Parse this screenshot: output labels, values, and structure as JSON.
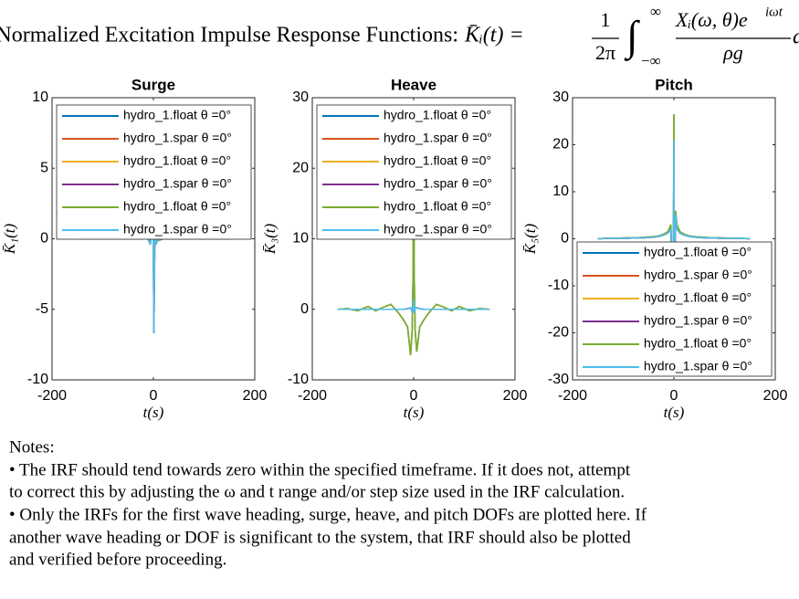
{
  "header": {
    "title": "Normalized Excitation Impulse Response Functions:",
    "lhs": "K̄ᵢ(t) =",
    "frac1_num": "1",
    "frac1_den": "2π",
    "integral": "∫",
    "upper": "∞",
    "lower": "−∞",
    "frac2_num": "Xᵢ(ω, θ)e",
    "frac2_sup": "iωt",
    "frac2_den": "ρg",
    "tail": "d"
  },
  "chart_data": [
    {
      "type": "line",
      "title": "Surge",
      "xlabel": "t(s)",
      "ylabel": "K̄₁(t)",
      "xlim": [
        -200,
        200
      ],
      "xticks": [
        -200,
        0,
        200
      ],
      "ylim": [
        -10,
        10
      ],
      "yticks": [
        -10,
        -5,
        0,
        5,
        10
      ],
      "grid": false,
      "legend": "northwest",
      "x": [
        -150,
        -130,
        -110,
        -90,
        -75,
        -60,
        -45,
        -30,
        -20,
        -12,
        -6,
        -3,
        -1,
        0,
        1,
        3,
        6,
        12,
        20,
        30,
        45,
        60,
        75,
        90,
        110,
        130,
        150
      ],
      "series": [
        {
          "name": "hydro_1.float θ =0°",
          "color": "#0072BD",
          "values": [
            0,
            0,
            0,
            0,
            0,
            0,
            0,
            0,
            0,
            0.1,
            -0.2,
            0.5,
            1.2,
            -1,
            0.8,
            -0.4,
            0.2,
            -0.1,
            0,
            0,
            0,
            0,
            0,
            0,
            0,
            0,
            0
          ]
        },
        {
          "name": "hydro_1.spar θ =0°",
          "color": "#D95319",
          "values": [
            0,
            0,
            0,
            0,
            0,
            0,
            0,
            0,
            0,
            0.1,
            -0.4,
            1,
            6.3,
            -1.5,
            -6.7,
            1.2,
            -0.3,
            0.1,
            0,
            0,
            0,
            0,
            0,
            0,
            0,
            0,
            0
          ]
        },
        {
          "name": "hydro_1.float θ =0°",
          "color": "#EDB120",
          "values": [
            0,
            0,
            0,
            0,
            0,
            0,
            0,
            0,
            0,
            0.1,
            -0.2,
            0.5,
            1.2,
            -1,
            0.8,
            -0.4,
            0.2,
            -0.1,
            0,
            0,
            0,
            0,
            0,
            0,
            0,
            0,
            0
          ]
        },
        {
          "name": "hydro_1.spar θ =0°",
          "color": "#7E2F8E",
          "values": [
            0,
            0,
            0,
            0,
            0,
            0,
            0,
            0,
            0,
            0.1,
            -0.4,
            1,
            6.3,
            -1.5,
            -6.7,
            1.2,
            -0.3,
            0.1,
            0,
            0,
            0,
            0,
            0,
            0,
            0,
            0,
            0
          ]
        },
        {
          "name": "hydro_1.float θ =0°",
          "color": "#77AC30",
          "values": [
            0,
            0,
            0,
            0,
            0,
            0,
            0,
            0,
            0,
            0.1,
            -0.2,
            0.5,
            1.2,
            -1,
            0.8,
            -0.4,
            0.2,
            -0.1,
            0,
            0,
            0,
            0,
            0,
            0,
            0,
            0,
            0
          ]
        },
        {
          "name": "hydro_1.spar θ =0°",
          "color": "#4DBEEE",
          "values": [
            0,
            0,
            0,
            0,
            0,
            0,
            0,
            0,
            0,
            0.1,
            -0.4,
            1,
            6.3,
            -1.5,
            -6.7,
            1.2,
            -0.3,
            0.1,
            0,
            0,
            0,
            0,
            0,
            0,
            0,
            0,
            0
          ]
        }
      ]
    },
    {
      "type": "line",
      "title": "Heave",
      "xlabel": "t(s)",
      "ylabel": "K̄₃(t)",
      "xlim": [
        -200,
        200
      ],
      "xticks": [
        -200,
        0,
        200
      ],
      "ylim": [
        -10,
        30
      ],
      "yticks": [
        -10,
        0,
        10,
        20,
        30
      ],
      "grid": false,
      "legend": "northwest",
      "x": [
        -150,
        -130,
        -110,
        -90,
        -75,
        -60,
        -45,
        -30,
        -20,
        -12,
        -6,
        -3,
        -1,
        0,
        1,
        3,
        6,
        12,
        20,
        30,
        45,
        60,
        75,
        90,
        110,
        130,
        150
      ],
      "series": [
        {
          "name": "hydro_1.float θ =0°",
          "color": "#0072BD",
          "values": [
            0,
            0.1,
            -0.2,
            0.4,
            -0.2,
            0.3,
            0.7,
            -0.5,
            -1.5,
            -2.5,
            -6.5,
            -3,
            5,
            28.5,
            5,
            -3,
            -6,
            -2.5,
            -1.5,
            -0.5,
            0.7,
            0.3,
            -0.2,
            0.4,
            -0.2,
            0.1,
            0
          ]
        },
        {
          "name": "hydro_1.spar θ =0°",
          "color": "#D95319",
          "values": [
            0,
            0,
            0,
            0,
            0,
            0,
            0,
            0,
            0,
            0.1,
            0.2,
            -0.3,
            0.5,
            1.5,
            -0.5,
            0.3,
            0.2,
            0.1,
            0,
            0,
            0,
            0,
            0,
            0,
            0,
            0,
            0
          ]
        },
        {
          "name": "hydro_1.float θ =0°",
          "color": "#EDB120",
          "values": [
            0,
            0.1,
            -0.2,
            0.4,
            -0.2,
            0.3,
            0.7,
            -0.5,
            -1.5,
            -2.5,
            -6.5,
            -3,
            5,
            28.5,
            5,
            -3,
            -6,
            -2.5,
            -1.5,
            -0.5,
            0.7,
            0.3,
            -0.2,
            0.4,
            -0.2,
            0.1,
            0
          ]
        },
        {
          "name": "hydro_1.spar θ =0°",
          "color": "#7E2F8E",
          "values": [
            0,
            0,
            0,
            0,
            0,
            0,
            0,
            0,
            0,
            0.1,
            0.2,
            -0.3,
            0.5,
            1.5,
            -0.5,
            0.3,
            0.2,
            0.1,
            0,
            0,
            0,
            0,
            0,
            0,
            0,
            0,
            0
          ]
        },
        {
          "name": "hydro_1.float θ =0°",
          "color": "#77AC30",
          "values": [
            0,
            0.1,
            -0.2,
            0.4,
            -0.2,
            0.3,
            0.7,
            -0.5,
            -1.5,
            -2.5,
            -6.5,
            -3,
            5,
            28.5,
            5,
            -3,
            -6,
            -2.5,
            -1.5,
            -0.5,
            0.7,
            0.3,
            -0.2,
            0.4,
            -0.2,
            0.1,
            0
          ]
        },
        {
          "name": "hydro_1.spar θ =0°",
          "color": "#4DBEEE",
          "values": [
            0,
            0,
            0,
            0,
            0,
            0,
            0,
            0,
            0,
            0.1,
            0.2,
            -0.3,
            0.5,
            1.5,
            -0.5,
            0.3,
            0.2,
            0.1,
            0,
            0,
            0,
            0,
            0,
            0,
            0,
            0,
            0
          ]
        }
      ]
    },
    {
      "type": "line",
      "title": "Pitch",
      "xlabel": "t(s)",
      "ylabel": "K̄₅(t)",
      "xlim": [
        -200,
        200
      ],
      "xticks": [
        -200,
        0,
        200
      ],
      "ylim": [
        -30,
        30
      ],
      "yticks": [
        -30,
        -20,
        -10,
        0,
        10,
        20,
        30
      ],
      "grid": false,
      "legend": "southeast",
      "x": [
        -150,
        -130,
        -110,
        -90,
        -75,
        -60,
        -45,
        -30,
        -20,
        -12,
        -6,
        -3,
        -1,
        0,
        1,
        3,
        6,
        12,
        20,
        30,
        45,
        60,
        75,
        90,
        110,
        130,
        150
      ],
      "series": [
        {
          "name": "hydro_1.float θ =0°",
          "color": "#0072BD",
          "values": [
            0,
            0.1,
            0.1,
            0.2,
            0.2,
            0.3,
            0.4,
            0.6,
            1,
            1.5,
            3,
            -8,
            -10,
            26.5,
            -25,
            6,
            3,
            1.5,
            1,
            0.6,
            0.4,
            0.3,
            0.2,
            0.2,
            0.1,
            0.1,
            0
          ]
        },
        {
          "name": "hydro_1.spar θ =0°",
          "color": "#D95319",
          "values": [
            0,
            0.1,
            0.1,
            0.1,
            0.2,
            0.2,
            0.3,
            0.5,
            0.8,
            1.2,
            2,
            -6,
            -8,
            21,
            -19,
            5,
            2,
            1.2,
            0.8,
            0.5,
            0.3,
            0.2,
            0.2,
            0.1,
            0.1,
            0.1,
            0
          ]
        },
        {
          "name": "hydro_1.float θ =0°",
          "color": "#EDB120",
          "values": [
            0,
            0.1,
            0.1,
            0.2,
            0.2,
            0.3,
            0.4,
            0.6,
            1,
            1.5,
            3,
            -8,
            -10,
            26.5,
            -25,
            6,
            3,
            1.5,
            1,
            0.6,
            0.4,
            0.3,
            0.2,
            0.2,
            0.1,
            0.1,
            0
          ]
        },
        {
          "name": "hydro_1.spar θ =0°",
          "color": "#7E2F8E",
          "values": [
            0,
            0.1,
            0.1,
            0.1,
            0.2,
            0.2,
            0.3,
            0.5,
            0.8,
            1.2,
            2,
            -6,
            -8,
            21,
            -19,
            5,
            2,
            1.2,
            0.8,
            0.5,
            0.3,
            0.2,
            0.2,
            0.1,
            0.1,
            0.1,
            0
          ]
        },
        {
          "name": "hydro_1.float θ =0°",
          "color": "#77AC30",
          "values": [
            0,
            0.1,
            0.1,
            0.2,
            0.2,
            0.3,
            0.4,
            0.6,
            1,
            1.5,
            3,
            -8,
            -10,
            26.5,
            -25,
            6,
            3,
            1.5,
            1,
            0.6,
            0.4,
            0.3,
            0.2,
            0.2,
            0.1,
            0.1,
            0
          ]
        },
        {
          "name": "hydro_1.spar θ =0°",
          "color": "#4DBEEE",
          "values": [
            0,
            0.1,
            0.1,
            0.1,
            0.2,
            0.2,
            0.3,
            0.5,
            0.8,
            1.2,
            2,
            -6,
            -8,
            21,
            -19,
            5,
            2,
            1.2,
            0.8,
            0.5,
            0.3,
            0.2,
            0.2,
            0.1,
            0.1,
            0.1,
            0
          ]
        }
      ]
    }
  ],
  "notes": {
    "heading": "Notes:",
    "lines": [
      "• The IRF should tend towards zero within the specified timeframe. If it does not, attempt",
      "to correct this by adjusting the ω and t range and/or step size used in the IRF calculation.",
      "• Only the IRFs for the first wave heading, surge, heave, and pitch DOFs are plotted here. If",
      "another wave heading or DOF is significant to the system, that IRF should also be plotted",
      "and verified before proceeding."
    ]
  }
}
